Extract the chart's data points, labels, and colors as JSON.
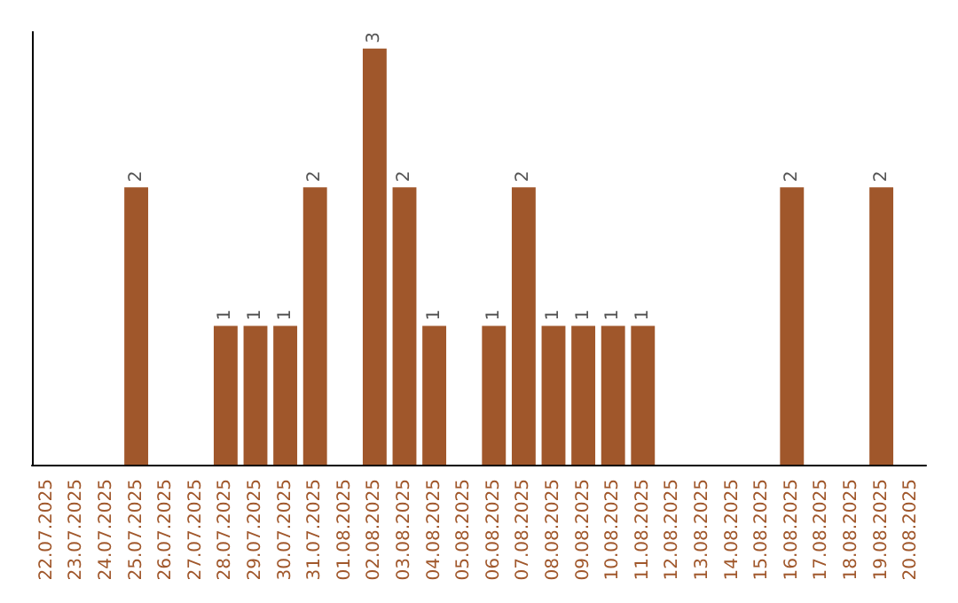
{
  "chart_data": {
    "type": "bar",
    "categories": [
      "22.07.2025",
      "23.07.2025",
      "24.07.2025",
      "25.07.2025",
      "26.07.2025",
      "27.07.2025",
      "28.07.2025",
      "29.07.2025",
      "30.07.2025",
      "31.07.2025",
      "01.08.2025",
      "02.08.2025",
      "03.08.2025",
      "04.08.2025",
      "05.08.2025",
      "06.08.2025",
      "07.08.2025",
      "08.08.2025",
      "09.08.2025",
      "10.08.2025",
      "11.08.2025",
      "12.08.2025",
      "13.08.2025",
      "14.08.2025",
      "15.08.2025",
      "16.08.2025",
      "17.08.2025",
      "18.08.2025",
      "19.08.2025",
      "20.08.2025"
    ],
    "values": [
      0,
      0,
      0,
      2,
      0,
      0,
      1,
      1,
      1,
      2,
      0,
      3,
      2,
      1,
      0,
      1,
      2,
      1,
      1,
      1,
      1,
      0,
      0,
      0,
      0,
      2,
      0,
      0,
      2,
      0
    ],
    "value_labels": [
      null,
      null,
      null,
      "2",
      null,
      null,
      "1",
      "1",
      "1",
      "2",
      null,
      "3",
      "2",
      "1",
      null,
      "1",
      "2",
      "1",
      "1",
      "1",
      "1",
      null,
      null,
      null,
      null,
      "2",
      null,
      null,
      "2",
      null
    ],
    "color": "#a0572b",
    "tick_labels": "x",
    "grid": false
  }
}
